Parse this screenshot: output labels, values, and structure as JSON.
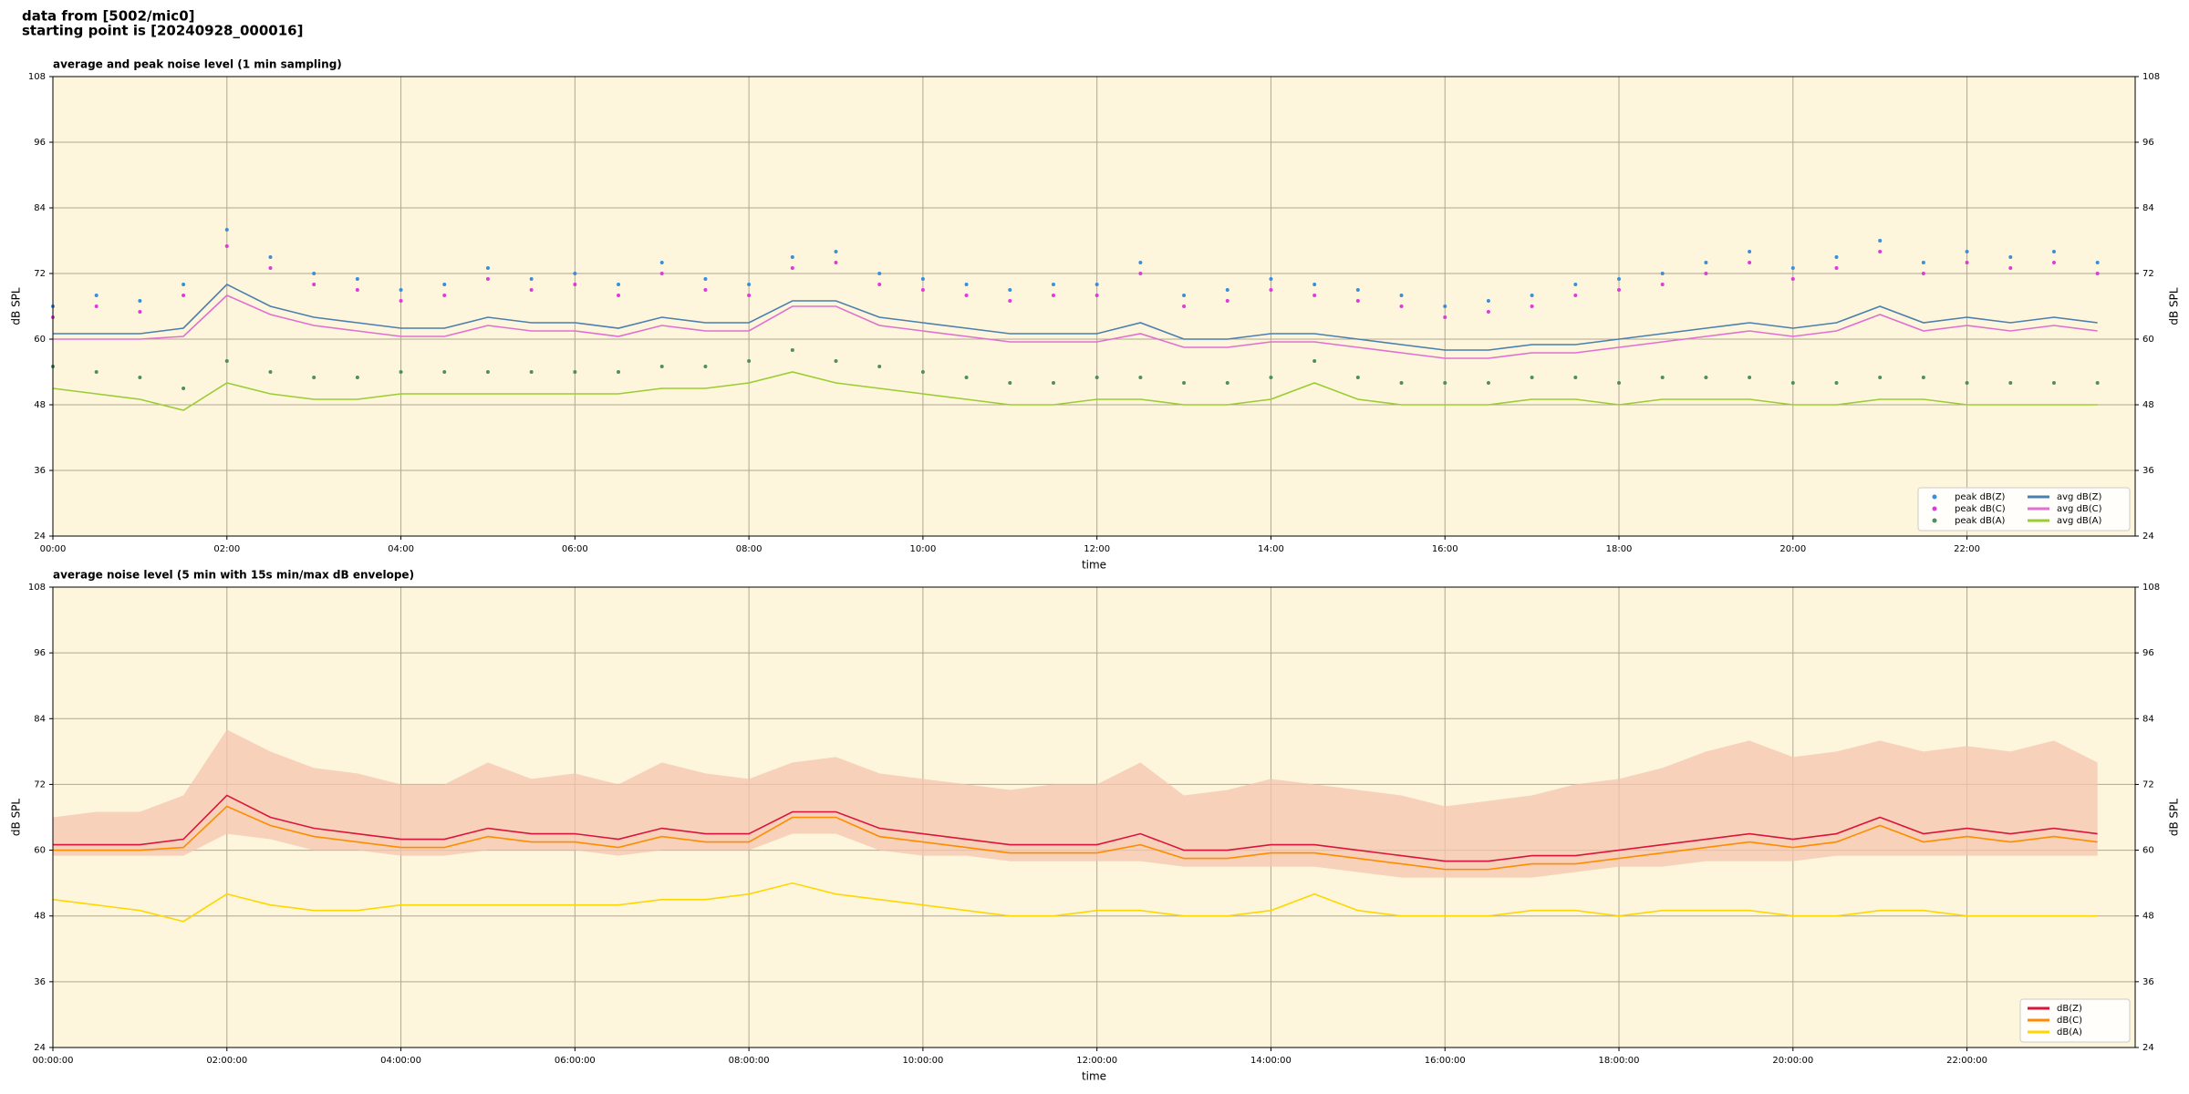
{
  "header": {
    "line1": "data from [5002/mic0]",
    "line2": "starting point is [20240928_000016]"
  },
  "chart_data": [
    {
      "type": "line",
      "title": "average and peak noise level (1 min sampling)",
      "xlabel": "time",
      "ylabel": "dB SPL",
      "x": [
        0,
        30,
        60,
        90,
        120,
        150,
        180,
        210,
        240,
        270,
        300,
        330,
        360,
        390,
        420,
        450,
        480,
        510,
        540,
        570,
        600,
        630,
        660,
        690,
        720,
        750,
        780,
        810,
        840,
        870,
        900,
        930,
        960,
        990,
        1020,
        1050,
        1080,
        1110,
        1140,
        1170,
        1200,
        1230,
        1260,
        1290,
        1320,
        1350,
        1380,
        1410
      ],
      "xlim": [
        0,
        1436
      ],
      "xticks": [
        {
          "value": 0,
          "label": "00:00"
        },
        {
          "value": 120,
          "label": "02:00"
        },
        {
          "value": 240,
          "label": "04:00"
        },
        {
          "value": 360,
          "label": "06:00"
        },
        {
          "value": 480,
          "label": "08:00"
        },
        {
          "value": 600,
          "label": "10:00"
        },
        {
          "value": 720,
          "label": "12:00"
        },
        {
          "value": 840,
          "label": "14:00"
        },
        {
          "value": 960,
          "label": "16:00"
        },
        {
          "value": 1080,
          "label": "18:00"
        },
        {
          "value": 1200,
          "label": "20:00"
        },
        {
          "value": 1320,
          "label": "22:00"
        }
      ],
      "ylim": [
        24,
        108
      ],
      "yticks": [
        24,
        36,
        48,
        60,
        72,
        84,
        96,
        108
      ],
      "grid": true,
      "legend": "lower right",
      "background": "#fdf6dc",
      "series": [
        {
          "name": "peak dB(Z)",
          "style": "points",
          "color": "#3a8fd8",
          "values": [
            66,
            68,
            67,
            70,
            80,
            75,
            72,
            71,
            69,
            70,
            73,
            71,
            72,
            70,
            74,
            71,
            70,
            75,
            76,
            72,
            71,
            70,
            69,
            70,
            70,
            74,
            68,
            69,
            71,
            70,
            69,
            68,
            66,
            67,
            68,
            70,
            71,
            72,
            74,
            76,
            73,
            75,
            78,
            74,
            76,
            75,
            76,
            74
          ]
        },
        {
          "name": "peak dB(C)",
          "style": "points",
          "color": "#e03ad8",
          "values": [
            64,
            66,
            65,
            68,
            77,
            73,
            70,
            69,
            67,
            68,
            71,
            69,
            70,
            68,
            72,
            69,
            68,
            73,
            74,
            70,
            69,
            68,
            67,
            68,
            68,
            72,
            66,
            67,
            69,
            68,
            67,
            66,
            64,
            65,
            66,
            68,
            69,
            70,
            72,
            74,
            71,
            73,
            76,
            72,
            74,
            73,
            74,
            72
          ]
        },
        {
          "name": "peak dB(A)",
          "style": "points",
          "color": "#4f8f5f",
          "values": [
            55,
            54,
            53,
            51,
            56,
            54,
            53,
            53,
            54,
            54,
            54,
            54,
            54,
            54,
            55,
            55,
            56,
            58,
            56,
            55,
            54,
            53,
            52,
            52,
            53,
            53,
            52,
            52,
            53,
            56,
            53,
            52,
            52,
            52,
            53,
            53,
            52,
            53,
            53,
            53,
            52,
            52,
            53,
            53,
            52,
            52,
            52,
            52
          ]
        },
        {
          "name": "avg dB(Z)",
          "style": "line",
          "color": "#4a7fb0",
          "values": [
            61,
            61,
            61,
            62,
            70,
            66,
            64,
            63,
            62,
            62,
            64,
            63,
            63,
            62,
            64,
            63,
            63,
            67,
            67,
            64,
            63,
            62,
            61,
            61,
            61,
            63,
            60,
            60,
            61,
            61,
            60,
            59,
            58,
            58,
            59,
            59,
            60,
            61,
            62,
            63,
            62,
            63,
            66,
            63,
            64,
            63,
            64,
            63
          ]
        },
        {
          "name": "avg dB(C)",
          "style": "line",
          "color": "#e070d0",
          "values": [
            60,
            60,
            60,
            60.5,
            68,
            64.5,
            62.5,
            61.5,
            60.5,
            60.5,
            62.5,
            61.5,
            61.5,
            60.5,
            62.5,
            61.5,
            61.5,
            66,
            66,
            62.5,
            61.5,
            60.5,
            59.5,
            59.5,
            59.5,
            61,
            58.5,
            58.5,
            59.5,
            59.5,
            58.5,
            57.5,
            56.5,
            56.5,
            57.5,
            57.5,
            58.5,
            59.5,
            60.5,
            61.5,
            60.5,
            61.5,
            64.5,
            61.5,
            62.5,
            61.5,
            62.5,
            61.5
          ]
        },
        {
          "name": "avg dB(A)",
          "style": "line",
          "color": "#9acd32",
          "values": [
            51,
            50,
            49,
            47,
            52,
            50,
            49,
            49,
            50,
            50,
            50,
            50,
            50,
            50,
            51,
            51,
            52,
            54,
            52,
            51,
            50,
            49,
            48,
            48,
            49,
            49,
            48,
            48,
            49,
            52,
            49,
            48,
            48,
            48,
            49,
            49,
            48,
            49,
            49,
            49,
            48,
            48,
            49,
            49,
            48,
            48,
            48,
            48
          ]
        }
      ]
    },
    {
      "type": "line",
      "title": "average noise level (5 min with 15s min/max dB envelope)",
      "xlabel": "time",
      "ylabel": "dB SPL",
      "x": [
        0,
        30,
        60,
        90,
        120,
        150,
        180,
        210,
        240,
        270,
        300,
        330,
        360,
        390,
        420,
        450,
        480,
        510,
        540,
        570,
        600,
        630,
        660,
        690,
        720,
        750,
        780,
        810,
        840,
        870,
        900,
        930,
        960,
        990,
        1020,
        1050,
        1080,
        1110,
        1140,
        1170,
        1200,
        1230,
        1260,
        1290,
        1320,
        1350,
        1380,
        1410
      ],
      "xlim": [
        0,
        1436
      ],
      "xticks": [
        {
          "value": 0,
          "label": "00:00:00"
        },
        {
          "value": 120,
          "label": "02:00:00"
        },
        {
          "value": 240,
          "label": "04:00:00"
        },
        {
          "value": 360,
          "label": "06:00:00"
        },
        {
          "value": 480,
          "label": "08:00:00"
        },
        {
          "value": 600,
          "label": "10:00:00"
        },
        {
          "value": 720,
          "label": "12:00:00"
        },
        {
          "value": 840,
          "label": "14:00:00"
        },
        {
          "value": 960,
          "label": "16:00:00"
        },
        {
          "value": 1080,
          "label": "18:00:00"
        },
        {
          "value": 1200,
          "label": "20:00:00"
        },
        {
          "value": 1320,
          "label": "22:00:00"
        }
      ],
      "ylim": [
        24,
        108
      ],
      "yticks": [
        24,
        36,
        48,
        60,
        72,
        84,
        96,
        108
      ],
      "grid": true,
      "legend": "lower right",
      "background": "#fdf6dc",
      "envelope": {
        "color": "#f4c4ae",
        "upper": [
          66,
          67,
          67,
          70,
          82,
          78,
          75,
          74,
          72,
          72,
          76,
          73,
          74,
          72,
          76,
          74,
          73,
          76,
          77,
          74,
          73,
          72,
          71,
          72,
          72,
          76,
          70,
          71,
          73,
          72,
          71,
          70,
          68,
          69,
          70,
          72,
          73,
          75,
          78,
          80,
          77,
          78,
          80,
          78,
          79,
          78,
          80,
          76
        ],
        "lower": [
          59,
          59,
          59,
          59,
          63,
          62,
          60,
          60,
          59,
          59,
          60,
          60,
          60,
          59,
          60,
          60,
          60,
          63,
          63,
          60,
          59,
          59,
          58,
          58,
          58,
          58,
          57,
          57,
          57,
          57,
          56,
          55,
          55,
          55,
          55,
          56,
          57,
          57,
          58,
          58,
          58,
          59,
          59,
          59,
          59,
          59,
          59,
          59
        ]
      },
      "series": [
        {
          "name": "dB(Z)",
          "style": "line",
          "color": "#dc143c",
          "values": [
            61,
            61,
            61,
            62,
            70,
            66,
            64,
            63,
            62,
            62,
            64,
            63,
            63,
            62,
            64,
            63,
            63,
            67,
            67,
            64,
            63,
            62,
            61,
            61,
            61,
            63,
            60,
            60,
            61,
            61,
            60,
            59,
            58,
            58,
            59,
            59,
            60,
            61,
            62,
            63,
            62,
            63,
            66,
            63,
            64,
            63,
            64,
            63
          ]
        },
        {
          "name": "dB(C)",
          "style": "line",
          "color": "#ff8c00",
          "values": [
            60,
            60,
            60,
            60.5,
            68,
            64.5,
            62.5,
            61.5,
            60.5,
            60.5,
            62.5,
            61.5,
            61.5,
            60.5,
            62.5,
            61.5,
            61.5,
            66,
            66,
            62.5,
            61.5,
            60.5,
            59.5,
            59.5,
            59.5,
            61,
            58.5,
            58.5,
            59.5,
            59.5,
            58.5,
            57.5,
            56.5,
            56.5,
            57.5,
            57.5,
            58.5,
            59.5,
            60.5,
            61.5,
            60.5,
            61.5,
            64.5,
            61.5,
            62.5,
            61.5,
            62.5,
            61.5
          ]
        },
        {
          "name": "dB(A)",
          "style": "line",
          "color": "#ffd700",
          "values": [
            51,
            50,
            49,
            47,
            52,
            50,
            49,
            49,
            50,
            50,
            50,
            50,
            50,
            50,
            51,
            51,
            52,
            54,
            52,
            51,
            50,
            49,
            48,
            48,
            49,
            49,
            48,
            48,
            49,
            52,
            49,
            48,
            48,
            48,
            49,
            49,
            48,
            49,
            49,
            49,
            48,
            48,
            49,
            49,
            48,
            48,
            48,
            48
          ]
        }
      ]
    }
  ]
}
